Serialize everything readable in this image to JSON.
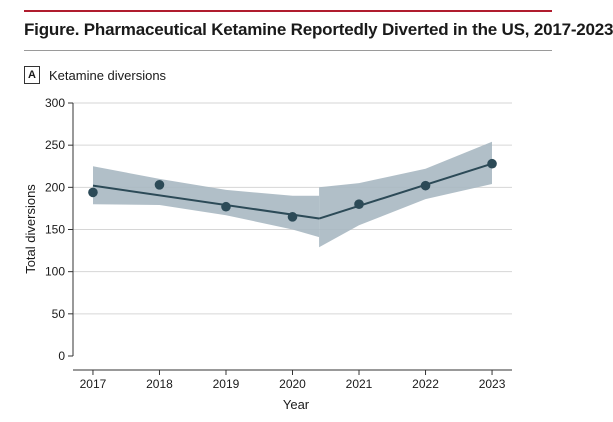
{
  "figure": {
    "title": "Figure. Pharmaceutical Ketamine Reportedly Diverted in the US, 2017-2023",
    "panel_letter": "A",
    "panel_title": "Ketamine diversions"
  },
  "colors": {
    "title_rule_accent": "#b01c2e",
    "band": "#a9b8c2",
    "line": "#2c4a57",
    "points": "#2c4a57",
    "grid": "#d6d6d6"
  },
  "chart_data": {
    "type": "line",
    "title": "Ketamine diversions",
    "xlabel": "Year",
    "ylabel": "Total diversions",
    "x": [
      2017,
      2018,
      2019,
      2020,
      2021,
      2022,
      2023
    ],
    "xlim": [
      2016.7,
      2023.3
    ],
    "ylim": [
      0,
      300
    ],
    "yticks": [
      0,
      50,
      100,
      150,
      200,
      250,
      300
    ],
    "grid": true,
    "series": [
      {
        "values": [
          194,
          203,
          177,
          165,
          180,
          202,
          228
        ]
      }
    ],
    "trend": {
      "segments": [
        {
          "x": [
            2017,
            2020.4
          ],
          "y": [
            202,
            163
          ]
        },
        {
          "x": [
            2020.4,
            2023
          ],
          "y": [
            163,
            228
          ]
        }
      ],
      "ci_band": [
        {
          "x": [
            2017,
            2018,
            2019,
            2020,
            2020.4
          ],
          "lower": [
            180,
            179,
            167,
            150,
            141
          ],
          "upper": [
            225,
            210,
            197,
            190,
            190
          ]
        },
        {
          "x": [
            2020.4,
            2021,
            2022,
            2023
          ],
          "lower": [
            129,
            155,
            186,
            204
          ],
          "upper": [
            200,
            205,
            222,
            254
          ]
        }
      ]
    }
  }
}
